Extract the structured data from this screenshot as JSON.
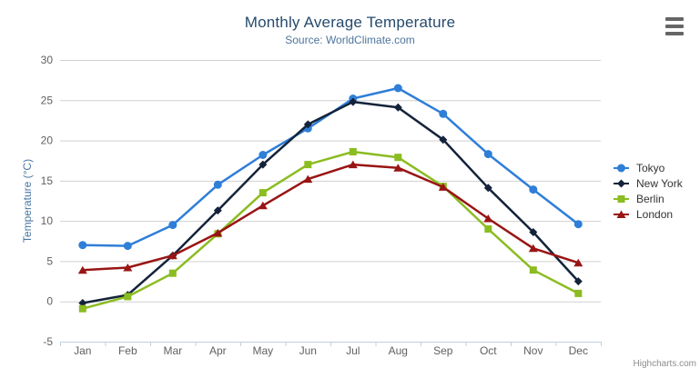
{
  "chart_data": {
    "type": "line",
    "title": "Monthly Average Temperature",
    "subtitle": "Source: WorldClimate.com",
    "categories": [
      "Jan",
      "Feb",
      "Mar",
      "Apr",
      "May",
      "Jun",
      "Jul",
      "Aug",
      "Sep",
      "Oct",
      "Nov",
      "Dec"
    ],
    "series": [
      {
        "name": "Tokyo",
        "color": "#2f7ed8",
        "marker": "circle",
        "values": [
          7.0,
          6.9,
          9.5,
          14.5,
          18.2,
          21.5,
          25.2,
          26.5,
          23.3,
          18.3,
          13.9,
          9.6
        ]
      },
      {
        "name": "New York",
        "color": "#14233a",
        "marker": "diamond",
        "values": [
          -0.2,
          0.8,
          5.7,
          11.3,
          17.0,
          22.0,
          24.8,
          24.1,
          20.1,
          14.1,
          8.6,
          2.5
        ]
      },
      {
        "name": "Berlin",
        "color": "#8bbc21",
        "marker": "square",
        "values": [
          -0.9,
          0.6,
          3.5,
          8.4,
          13.5,
          17.0,
          18.6,
          17.9,
          14.3,
          9.0,
          3.9,
          1.0
        ]
      },
      {
        "name": "London",
        "color": "#991414",
        "marker": "triangle",
        "values": [
          3.9,
          4.2,
          5.7,
          8.5,
          11.9,
          15.2,
          17.0,
          16.6,
          14.2,
          10.3,
          6.6,
          4.8
        ]
      }
    ],
    "xlabel": "",
    "ylabel": "Temperature (°C)",
    "ylim": [
      -5,
      30
    ],
    "ytick_interval": 5,
    "grid": true,
    "legend_position": "right"
  },
  "menu": {
    "icon": "hamburger-menu-icon"
  },
  "credits": {
    "label": "Highcharts.com"
  },
  "colors": {
    "background": "#ffffff",
    "title": "#274b6d",
    "subtitle": "#4d759e",
    "y_axis_title": "#4977a4",
    "axis_labels": "#606060",
    "gridline": "#d0d0d0",
    "axis_line": "#c0d0e0",
    "legend_text": "#333333",
    "credits_text": "#8c8c8c",
    "menu_icon": "#666666"
  }
}
